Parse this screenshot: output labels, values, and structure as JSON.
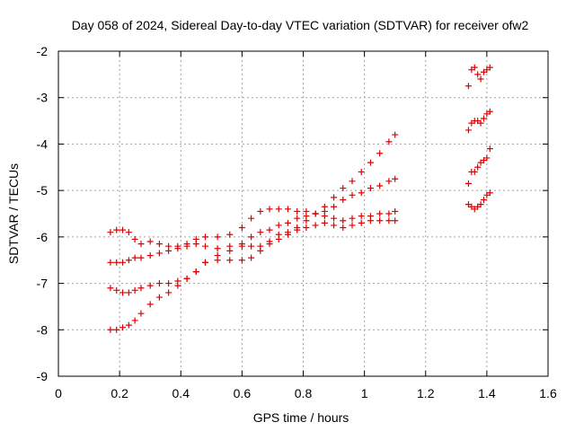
{
  "chart_data": {
    "type": "scatter",
    "title": "Day 058 of 2024, Sidereal Day-to-day VTEC variation (SDTVAR) for receiver ofw2",
    "xlabel": "GPS time / hours",
    "ylabel": "SDTVAR / TECUs",
    "xlim": [
      0,
      1.6
    ],
    "ylim": [
      -9,
      -2
    ],
    "xticks": [
      "0",
      "0.2",
      "0.4",
      "0.6",
      "0.8",
      "1",
      "1.2",
      "1.4",
      "1.6"
    ],
    "yticks": [
      "-2",
      "-3",
      "-4",
      "-5",
      "-6",
      "-7",
      "-8",
      "-9"
    ],
    "grid": true,
    "marker": "+",
    "color": "#e00000",
    "series": [
      {
        "x": [
          0.17,
          0.19,
          0.21,
          0.23,
          0.25,
          0.27,
          0.3,
          0.33,
          0.36,
          0.39,
          0.42,
          0.45,
          0.48,
          0.52,
          0.56,
          0.6,
          0.63,
          0.66,
          0.69,
          0.72,
          0.75,
          0.78,
          0.81,
          0.84,
          0.87,
          0.9,
          0.93,
          0.96,
          0.99,
          1.02,
          1.05,
          1.08,
          1.1
        ],
        "y": [
          -5.9,
          -5.85,
          -5.85,
          -5.9,
          -6.05,
          -6.15,
          -6.1,
          -6.15,
          -6.2,
          -6.2,
          -6.15,
          -6.05,
          -6.0,
          -6.0,
          -5.95,
          -5.8,
          -5.6,
          -5.45,
          -5.4,
          -5.4,
          -5.4,
          -5.45,
          -5.45,
          -5.5,
          -5.55,
          -5.6,
          -5.65,
          -5.6,
          -5.55,
          -5.55,
          -5.5,
          -5.5,
          -5.45
        ]
      },
      {
        "x": [
          0.17,
          0.19,
          0.21,
          0.23,
          0.25,
          0.27,
          0.3,
          0.33,
          0.36,
          0.39,
          0.42,
          0.45,
          0.48,
          0.52,
          0.56,
          0.6,
          0.63,
          0.66,
          0.69,
          0.72,
          0.75,
          0.78,
          0.81,
          0.84,
          0.87,
          0.9,
          0.93,
          0.96,
          0.99,
          1.02,
          1.05,
          1.08,
          1.1
        ],
        "y": [
          -6.55,
          -6.55,
          -6.55,
          -6.5,
          -6.45,
          -6.45,
          -6.4,
          -6.35,
          -6.3,
          -6.25,
          -6.2,
          -6.15,
          -6.2,
          -6.25,
          -6.2,
          -6.2,
          -6.2,
          -6.2,
          -6.15,
          -6.05,
          -5.95,
          -5.8,
          -5.65,
          -5.5,
          -5.35,
          -5.15,
          -4.95,
          -4.8,
          -4.6,
          -4.4,
          -4.2,
          -3.95,
          -3.8
        ]
      },
      {
        "x": [
          0.17,
          0.19,
          0.21,
          0.23,
          0.25,
          0.27,
          0.3,
          0.33,
          0.36,
          0.39,
          0.42,
          0.45,
          0.48,
          0.52,
          0.56,
          0.6,
          0.63,
          0.66,
          0.69,
          0.72,
          0.75,
          0.78,
          0.81,
          0.84,
          0.87,
          0.9,
          0.93,
          0.96,
          0.99,
          1.02,
          1.05,
          1.08,
          1.1
        ],
        "y": [
          -7.1,
          -7.15,
          -7.2,
          -7.2,
          -7.15,
          -7.1,
          -7.05,
          -7.0,
          -7.0,
          -6.95,
          -6.9,
          -6.75,
          -6.55,
          -6.5,
          -6.5,
          -6.5,
          -6.45,
          -6.3,
          -6.1,
          -5.95,
          -5.9,
          -5.85,
          -5.8,
          -5.75,
          -5.7,
          -5.75,
          -5.8,
          -5.75,
          -5.7,
          -5.65,
          -5.65,
          -5.65,
          -5.65
        ]
      },
      {
        "x": [
          0.17,
          0.19,
          0.21,
          0.23,
          0.25,
          0.27,
          0.3,
          0.33,
          0.36,
          0.39,
          0.42,
          0.45,
          0.48,
          0.52,
          0.56,
          0.6,
          0.63,
          0.66,
          0.69,
          0.72,
          0.75,
          0.78,
          0.81,
          0.84,
          0.87,
          0.9,
          0.93,
          0.96,
          0.99,
          1.02,
          1.05,
          1.08,
          1.1
        ],
        "y": [
          -8.0,
          -8.0,
          -7.95,
          -7.9,
          -7.8,
          -7.65,
          -7.45,
          -7.3,
          -7.2,
          -7.05,
          -6.9,
          -6.75,
          -6.55,
          -6.4,
          -6.3,
          -6.15,
          -6.0,
          -5.9,
          -5.85,
          -5.75,
          -5.7,
          -5.6,
          -5.55,
          -5.5,
          -5.45,
          -5.35,
          -5.2,
          -5.1,
          -5.05,
          -4.95,
          -4.9,
          -4.8,
          -4.75
        ]
      },
      {
        "x": [
          1.34,
          1.35,
          1.36,
          1.37,
          1.38,
          1.39,
          1.4,
          1.41
        ],
        "y": [
          -2.75,
          -2.4,
          -2.35,
          -2.5,
          -2.6,
          -2.45,
          -2.4,
          -2.35
        ]
      },
      {
        "x": [
          1.34,
          1.35,
          1.36,
          1.37,
          1.38,
          1.39,
          1.4,
          1.41
        ],
        "y": [
          -3.7,
          -3.55,
          -3.5,
          -3.5,
          -3.55,
          -3.45,
          -3.35,
          -3.3
        ]
      },
      {
        "x": [
          1.34,
          1.35,
          1.36,
          1.37,
          1.38,
          1.39,
          1.4,
          1.41
        ],
        "y": [
          -4.85,
          -4.6,
          -4.6,
          -4.5,
          -4.4,
          -4.35,
          -4.3,
          -4.1
        ]
      },
      {
        "x": [
          1.34,
          1.35,
          1.36,
          1.37,
          1.38,
          1.39,
          1.4,
          1.41
        ],
        "y": [
          -5.3,
          -5.35,
          -5.4,
          -5.35,
          -5.3,
          -5.2,
          -5.1,
          -5.05
        ]
      }
    ]
  }
}
